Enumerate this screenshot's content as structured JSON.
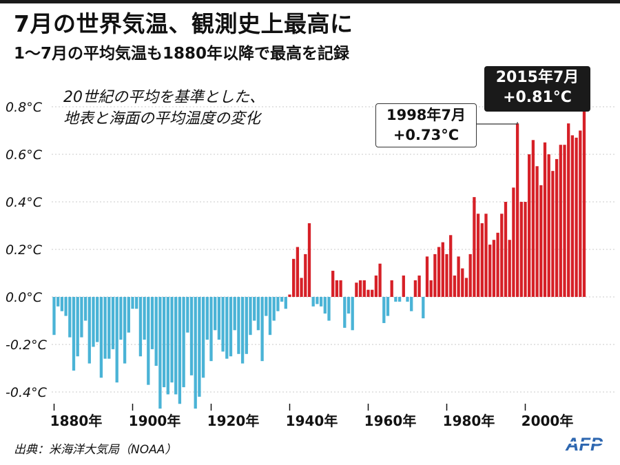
{
  "header": {
    "title": "7月の世界気温、観測史上最高に",
    "subtitle": "1〜7月の平均気温も1880年以降で最高を記録"
  },
  "description": {
    "line1": "20世紀の平均を基準とした、",
    "line2": "地表と海面の平均温度の変化"
  },
  "annotations": {
    "a2015": {
      "line1": "2015年7月",
      "line2": "+0.81°C"
    },
    "a1998": {
      "line1": "1998年7月",
      "line2": "+0.73°C"
    }
  },
  "footer": {
    "source": "出典：米海洋大気局（NOAA）",
    "logo": "AFP"
  },
  "colors": {
    "positive": "#d62027",
    "negative": "#4ab3d6",
    "annotation_dark": "#1a1a1a",
    "grid": "#c8c8c8"
  },
  "chart_data": {
    "type": "bar",
    "ylim": [
      -0.48,
      0.86
    ],
    "grid": true,
    "ytick_labels": [
      "0.8°C",
      "0.6°C",
      "0.4°C",
      "0.2°C",
      "0.0°C",
      "-0.2°C",
      "-0.4°C"
    ],
    "yticks": [
      0.8,
      0.6,
      0.4,
      0.2,
      0.0,
      -0.2,
      -0.4
    ],
    "xticks": [
      1880,
      1900,
      1920,
      1940,
      1960,
      1980,
      2000
    ],
    "xtick_labels": [
      "1880年",
      "1900年",
      "1920年",
      "1940年",
      "1960年",
      "1980年",
      "2000年"
    ],
    "x_start": 1880,
    "x": [
      1880,
      1881,
      1882,
      1883,
      1884,
      1885,
      1886,
      1887,
      1888,
      1889,
      1890,
      1891,
      1892,
      1893,
      1894,
      1895,
      1896,
      1897,
      1898,
      1899,
      1900,
      1901,
      1902,
      1903,
      1904,
      1905,
      1906,
      1907,
      1908,
      1909,
      1910,
      1911,
      1912,
      1913,
      1914,
      1915,
      1916,
      1917,
      1918,
      1919,
      1920,
      1921,
      1922,
      1923,
      1924,
      1925,
      1926,
      1927,
      1928,
      1929,
      1930,
      1931,
      1932,
      1933,
      1934,
      1935,
      1936,
      1937,
      1938,
      1939,
      1940,
      1941,
      1942,
      1943,
      1944,
      1945,
      1946,
      1947,
      1948,
      1949,
      1950,
      1951,
      1952,
      1953,
      1954,
      1955,
      1956,
      1957,
      1958,
      1959,
      1960,
      1961,
      1962,
      1963,
      1964,
      1965,
      1966,
      1967,
      1968,
      1969,
      1970,
      1971,
      1972,
      1973,
      1974,
      1975,
      1976,
      1977,
      1978,
      1979,
      1980,
      1981,
      1982,
      1983,
      1984,
      1985,
      1986,
      1987,
      1988,
      1989,
      1990,
      1991,
      1992,
      1993,
      1994,
      1995,
      1996,
      1997,
      1998,
      1999,
      2000,
      2001,
      2002,
      2003,
      2004,
      2005,
      2006,
      2007,
      2008,
      2009,
      2010,
      2011,
      2012,
      2013,
      2014,
      2015
    ],
    "values": [
      -0.16,
      -0.04,
      -0.06,
      -0.08,
      -0.17,
      -0.31,
      -0.25,
      -0.17,
      -0.1,
      -0.28,
      -0.21,
      -0.19,
      -0.34,
      -0.26,
      -0.26,
      -0.22,
      -0.36,
      -0.18,
      -0.28,
      -0.15,
      -0.05,
      -0.05,
      -0.25,
      -0.18,
      -0.37,
      -0.22,
      -0.29,
      -0.47,
      -0.38,
      -0.41,
      -0.36,
      -0.41,
      -0.45,
      -0.38,
      -0.15,
      -0.33,
      -0.47,
      -0.42,
      -0.34,
      -0.18,
      -0.27,
      -0.14,
      -0.18,
      -0.23,
      -0.26,
      -0.25,
      -0.14,
      -0.24,
      -0.28,
      -0.24,
      -0.16,
      -0.1,
      -0.14,
      -0.27,
      -0.08,
      -0.16,
      -0.1,
      -0.06,
      -0.02,
      -0.05,
      0.01,
      0.16,
      0.21,
      0.08,
      0.18,
      0.31,
      -0.04,
      -0.03,
      -0.04,
      -0.07,
      -0.1,
      0.11,
      0.07,
      0.07,
      -0.13,
      -0.07,
      -0.14,
      0.06,
      0.07,
      0.07,
      0.03,
      0.03,
      0.09,
      0.14,
      -0.11,
      -0.08,
      0.07,
      -0.02,
      -0.02,
      0.09,
      -0.02,
      -0.06,
      0.07,
      0.09,
      -0.09,
      0.17,
      0.07,
      0.18,
      0.21,
      0.23,
      0.18,
      0.26,
      0.09,
      0.17,
      0.12,
      0.08,
      0.18,
      0.42,
      0.35,
      0.31,
      0.35,
      0.22,
      0.24,
      0.27,
      0.35,
      0.4,
      0.24,
      0.46,
      0.73,
      0.4,
      0.4,
      0.6,
      0.66,
      0.55,
      0.47,
      0.65,
      0.6,
      0.53,
      0.58,
      0.64,
      0.64,
      0.73,
      0.68,
      0.67,
      0.7,
      0.81
    ]
  }
}
